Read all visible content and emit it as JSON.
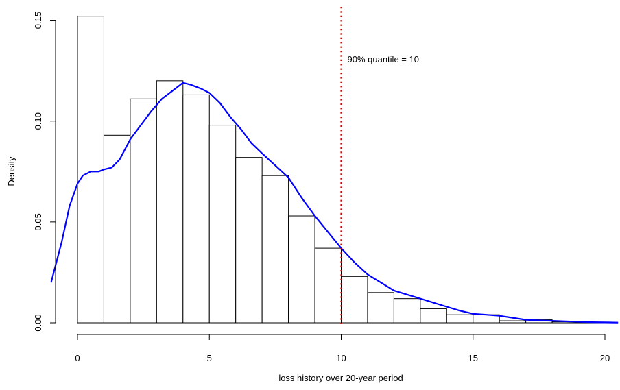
{
  "chart_data": {
    "type": "bar",
    "xlabel": "loss history over 20-year period",
    "ylabel": "Density",
    "xlim": [
      -1,
      20.5
    ],
    "ylim": [
      0,
      0.15
    ],
    "x_ticks": [
      0,
      5,
      10,
      15,
      20
    ],
    "y_ticks": [
      0.0,
      0.05,
      0.1,
      0.15
    ],
    "x_tick_labels": [
      "0",
      "5",
      "10",
      "15",
      "20"
    ],
    "y_tick_labels": [
      "0.00",
      "0.05",
      "0.10",
      "0.15"
    ],
    "bins": [
      {
        "from": 0,
        "to": 1,
        "density": 0.152
      },
      {
        "from": 1,
        "to": 2,
        "density": 0.093
      },
      {
        "from": 2,
        "to": 3,
        "density": 0.111
      },
      {
        "from": 3,
        "to": 4,
        "density": 0.12
      },
      {
        "from": 4,
        "to": 5,
        "density": 0.113
      },
      {
        "from": 5,
        "to": 6,
        "density": 0.098
      },
      {
        "from": 6,
        "to": 7,
        "density": 0.082
      },
      {
        "from": 7,
        "to": 8,
        "density": 0.073
      },
      {
        "from": 8,
        "to": 9,
        "density": 0.053
      },
      {
        "from": 9,
        "to": 10,
        "density": 0.037
      },
      {
        "from": 10,
        "to": 11,
        "density": 0.023
      },
      {
        "from": 11,
        "to": 12,
        "density": 0.015
      },
      {
        "from": 12,
        "to": 13,
        "density": 0.012
      },
      {
        "from": 13,
        "to": 14,
        "density": 0.007
      },
      {
        "from": 14,
        "to": 15,
        "density": 0.004
      },
      {
        "from": 15,
        "to": 16,
        "density": 0.004
      },
      {
        "from": 16,
        "to": 17,
        "density": 0.001
      },
      {
        "from": 17,
        "to": 18,
        "density": 0.0015
      },
      {
        "from": 18,
        "to": 19,
        "density": 0.0005
      },
      {
        "from": 19,
        "to": 20,
        "density": 0.0003
      }
    ],
    "density_curve": {
      "color": "#0000ff",
      "x": [
        -1,
        -0.6,
        -0.3,
        0,
        0.2,
        0.5,
        0.8,
        1.0,
        1.3,
        1.6,
        2.0,
        2.4,
        2.8,
        3.2,
        3.6,
        4.0,
        4.3,
        4.7,
        5.0,
        5.4,
        5.8,
        6.2,
        6.6,
        7.0,
        7.5,
        8.0,
        8.5,
        9.0,
        9.5,
        10.0,
        10.5,
        11.0,
        11.5,
        12.0,
        12.5,
        13.0,
        13.5,
        14.0,
        14.5,
        15.0,
        15.5,
        16.0,
        16.5,
        17.0,
        17.5,
        18.0,
        18.5,
        19.0,
        19.5,
        20.0,
        20.5
      ],
      "y": [
        0.02,
        0.04,
        0.058,
        0.069,
        0.073,
        0.075,
        0.075,
        0.076,
        0.077,
        0.081,
        0.091,
        0.098,
        0.105,
        0.111,
        0.115,
        0.119,
        0.118,
        0.116,
        0.114,
        0.109,
        0.102,
        0.096,
        0.089,
        0.084,
        0.078,
        0.072,
        0.062,
        0.053,
        0.045,
        0.037,
        0.03,
        0.024,
        0.02,
        0.016,
        0.014,
        0.012,
        0.01,
        0.008,
        0.006,
        0.0045,
        0.004,
        0.0035,
        0.0025,
        0.0015,
        0.0012,
        0.001,
        0.0007,
        0.0005,
        0.0003,
        0.0002,
        0.0001
      ]
    },
    "quantile_line": {
      "x": 10,
      "color": "#e00000",
      "label": "90% quantile = 10"
    },
    "grid": false,
    "legend": "none"
  }
}
